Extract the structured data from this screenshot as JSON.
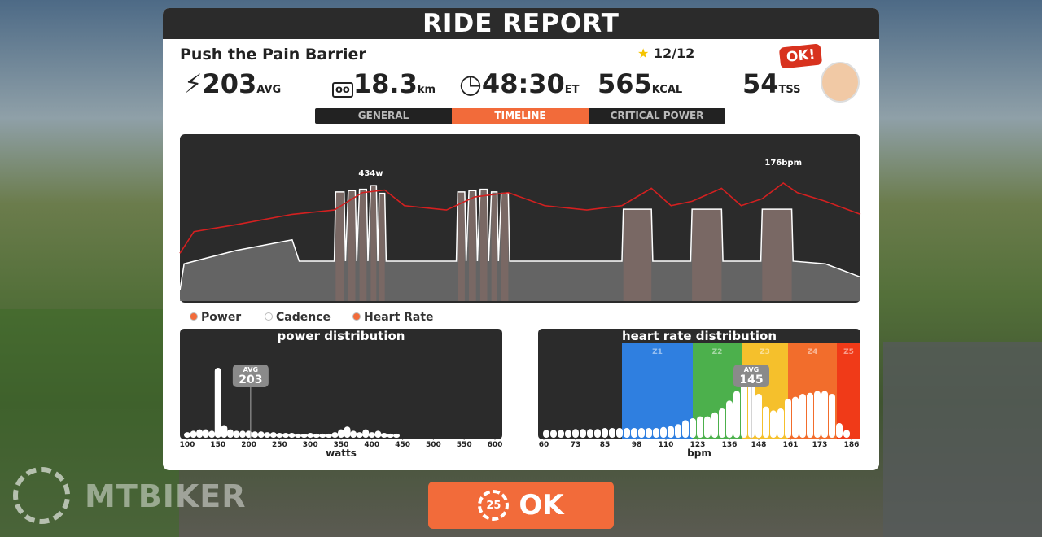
{
  "header": {
    "title": "RIDE REPORT"
  },
  "workout": {
    "name": "Push the Pain Barrier",
    "progress": "12/12"
  },
  "stats": [
    {
      "value": 203,
      "unit": "AVG"
    },
    {
      "value": 18.3,
      "unit": "km"
    },
    {
      "value": "48:30",
      "unit": "ET"
    },
    {
      "value": 565,
      "unit": "KCAL"
    },
    {
      "value": 54,
      "unit": "TSS"
    }
  ],
  "badge": "OK!",
  "tabs": {
    "items": [
      "GENERAL",
      "TIMELINE",
      "CRITICAL POWER"
    ],
    "active": 1
  },
  "timeline": {
    "minutes": [
      0,
      0.3,
      4,
      8,
      8.5,
      11,
      11.1,
      11.7,
      11.8,
      12.0,
      12.5,
      12.6,
      12.8,
      13.3,
      13.4,
      13.6,
      14.0,
      14.1,
      14.2,
      14.6,
      14.7,
      19.7,
      19.8,
      20.3,
      20.4,
      20.6,
      21.1,
      21.2,
      21.4,
      21.9,
      22.0,
      22.2,
      22.6,
      22.7,
      22.9,
      23.4,
      23.5,
      31.5,
      31.6,
      33.6,
      33.7,
      36.4,
      36.5,
      38.6,
      38.7,
      41.4,
      41.5,
      43.6,
      43.7,
      46,
      48.5
    ],
    "power": [
      40,
      140,
      190,
      230,
      150,
      150,
      410,
      410,
      150,
      415,
      415,
      150,
      420,
      420,
      150,
      434,
      434,
      150,
      405,
      405,
      150,
      150,
      410,
      410,
      150,
      415,
      415,
      150,
      420,
      420,
      150,
      410,
      410,
      150,
      405,
      405,
      150,
      150,
      345,
      345,
      150,
      150,
      345,
      345,
      150,
      150,
      345,
      345,
      150,
      140,
      90
    ],
    "hr_minutes": [
      0,
      1,
      4,
      8,
      11,
      13,
      14.6,
      16,
      19,
      21,
      23.4,
      26,
      29,
      31.5,
      33.6,
      35,
      36.5,
      38.6,
      40,
      41.5,
      43,
      44,
      46,
      48.5
    ],
    "heart_rate": [
      95,
      120,
      128,
      140,
      145,
      165,
      168,
      150,
      145,
      160,
      165,
      150,
      145,
      150,
      170,
      150,
      155,
      170,
      150,
      158,
      176,
      165,
      155,
      140
    ],
    "annotations": [
      "434w",
      "176bpm"
    ],
    "power_color": "#ffffff",
    "hr_color": "#d42020",
    "interval_color": "#b5462a"
  },
  "legend": [
    "Power",
    "Cadence",
    "Heart Rate"
  ],
  "power_distribution": {
    "title": "power distribution",
    "xlabel": "watts",
    "xticks": [
      100,
      150,
      200,
      250,
      300,
      350,
      400,
      450,
      500,
      550,
      600
    ],
    "avg_label": "AVG",
    "avg": 203,
    "watts": [
      100,
      110,
      120,
      130,
      140,
      150,
      160,
      170,
      180,
      190,
      200,
      210,
      220,
      230,
      240,
      250,
      260,
      270,
      280,
      290,
      300,
      310,
      320,
      330,
      340,
      350,
      360,
      370,
      380,
      390,
      400,
      410,
      420,
      430,
      440
    ],
    "shares": [
      8,
      10,
      12,
      12,
      10,
      100,
      18,
      12,
      10,
      10,
      10,
      9,
      9,
      8,
      8,
      7,
      7,
      7,
      6,
      6,
      7,
      6,
      6,
      6,
      8,
      12,
      16,
      10,
      8,
      12,
      8,
      10,
      7,
      6,
      6
    ]
  },
  "heart_rate_distribution": {
    "title": "heart rate distribution",
    "xlabel": "bpm",
    "xticks": [
      60,
      73,
      85,
      98,
      110,
      123,
      136,
      148,
      161,
      173,
      186
    ],
    "avg_label": "AVG",
    "avg": 145,
    "zones": [
      "Z1",
      "Z2",
      "Z3",
      "Z4",
      "Z5"
    ],
    "zone_starts": [
      92,
      121,
      141,
      160,
      180
    ],
    "zone_colors": [
      "#2f7fe0",
      "#4cb04c",
      "#f5c02c",
      "#f26d2c",
      "#f03a18"
    ],
    "bpm": [
      61,
      64,
      67,
      70,
      73,
      76,
      79,
      82,
      85,
      88,
      91,
      94,
      97,
      100,
      103,
      106,
      109,
      112,
      115,
      118,
      121,
      124,
      127,
      130,
      133,
      136,
      139,
      142,
      145,
      148,
      151,
      154,
      157,
      160,
      163,
      166,
      169,
      172,
      175,
      178,
      181,
      184
    ],
    "shares": [
      8,
      8,
      8,
      8,
      9,
      9,
      9,
      9,
      10,
      10,
      10,
      10,
      10,
      10,
      10,
      10,
      11,
      12,
      14,
      18,
      20,
      22,
      22,
      26,
      30,
      38,
      48,
      55,
      58,
      45,
      32,
      28,
      30,
      40,
      42,
      45,
      46,
      48,
      48,
      45,
      15,
      8
    ]
  },
  "button": {
    "label": "OK",
    "countdown": "25"
  },
  "watermark": "MTBIKER"
}
